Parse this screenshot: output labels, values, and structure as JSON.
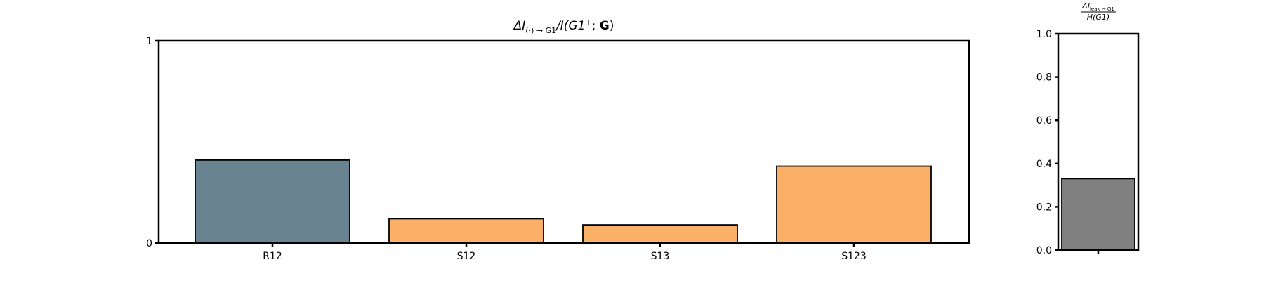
{
  "chart_data": [
    {
      "type": "bar",
      "title_parts": {
        "delta": "ΔI",
        "sub": "(·) → G1",
        "rest": "/I(G1",
        "sup": "+",
        "semi": "; ",
        "bold": "G",
        "close": ")"
      },
      "categories": [
        "R12",
        "S12",
        "S13",
        "S123"
      ],
      "values": [
        0.41,
        0.12,
        0.09,
        0.38
      ],
      "ylim": [
        0,
        1
      ],
      "yticks": [
        "0",
        "1"
      ],
      "colors": [
        "#68838f",
        "#fbb067",
        "#fbb067",
        "#fbb067"
      ],
      "grid": false
    },
    {
      "type": "bar",
      "title_parts": {
        "num": "ΔI",
        "num_sub": "leak → G1",
        "den": "H(G1)"
      },
      "categories": [
        ""
      ],
      "values": [
        0.33
      ],
      "ylim": [
        0,
        1
      ],
      "yticks": [
        "0.0",
        "0.2",
        "0.4",
        "0.6",
        "0.8",
        "1.0"
      ],
      "colors": [
        "#808080"
      ],
      "grid": false
    }
  ]
}
